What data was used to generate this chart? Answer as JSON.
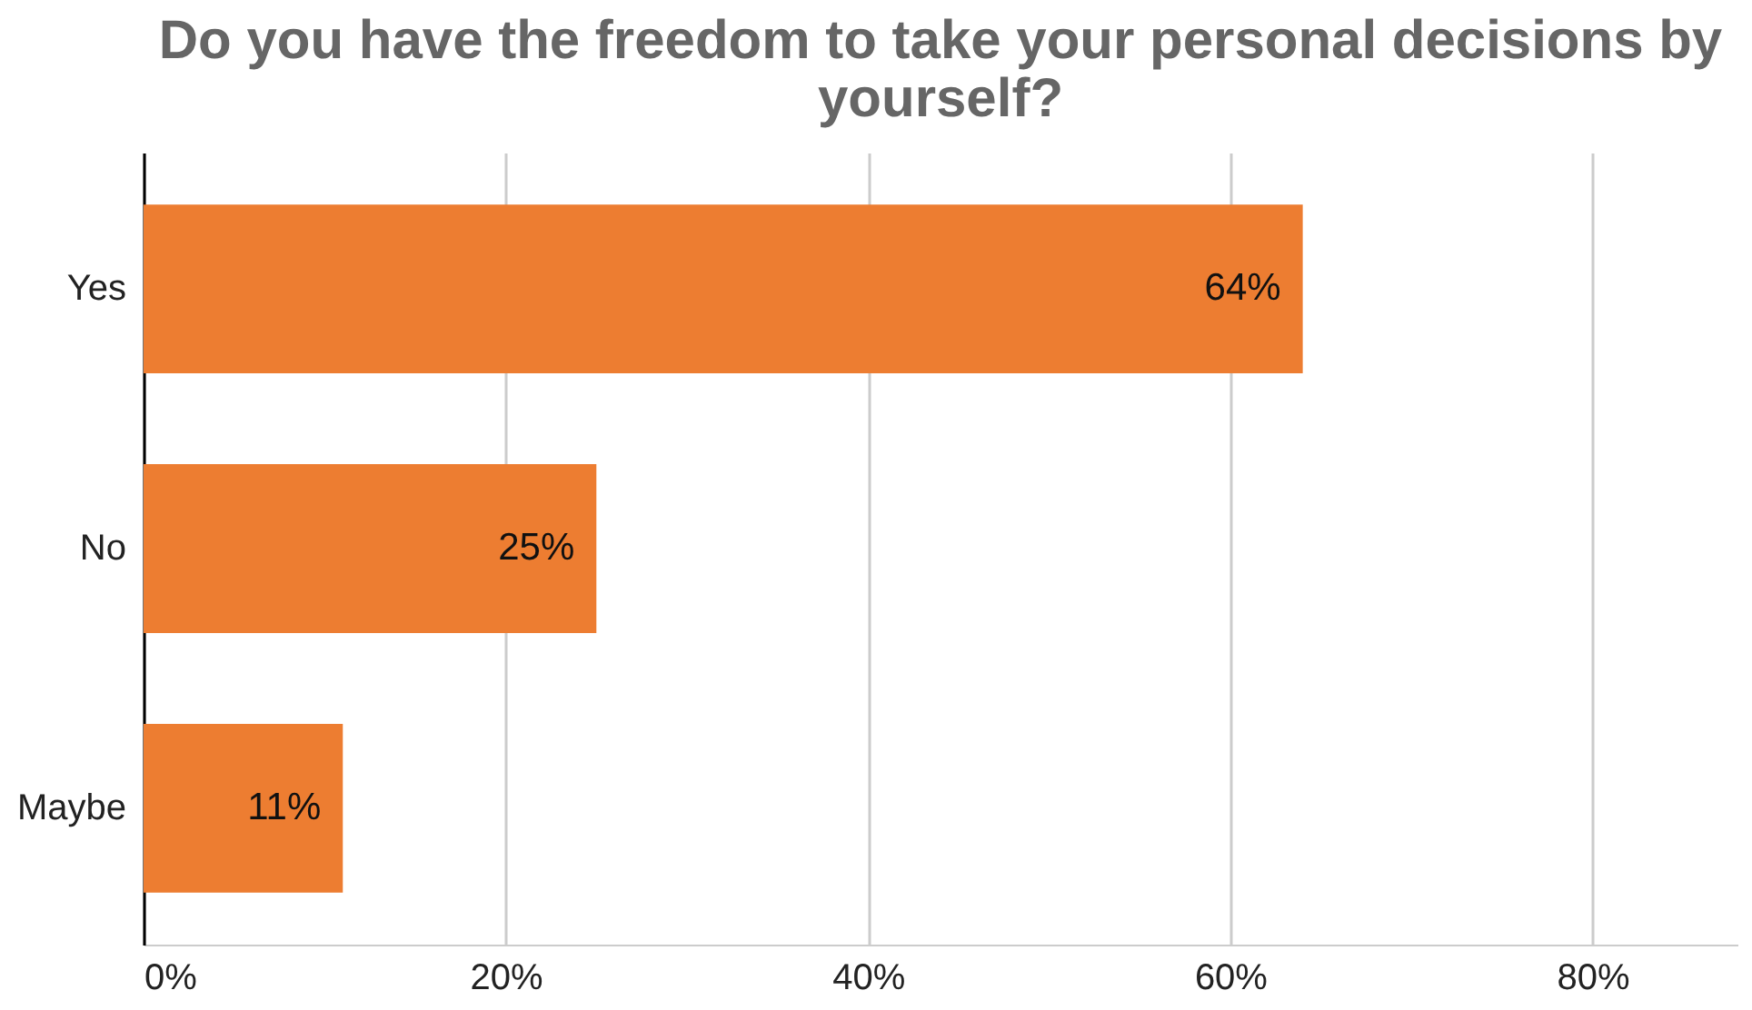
{
  "chart_data": {
    "type": "bar",
    "orientation": "horizontal",
    "title": "Do you have the freedom to take your personal decisions by yourself?",
    "categories": [
      "Yes",
      "No",
      "Maybe"
    ],
    "series": [
      {
        "color": "#ed7d31",
        "values": [
          64,
          25,
          11
        ],
        "value_labels": [
          "64%",
          "25%",
          "11%"
        ]
      }
    ],
    "xlim": [
      0,
      88
    ],
    "xticks": [
      {
        "value": 0,
        "label": "0%"
      },
      {
        "value": 20,
        "label": "20%"
      },
      {
        "value": 40,
        "label": "40%"
      },
      {
        "value": 60,
        "label": "60%"
      },
      {
        "value": 80,
        "label": "80%"
      }
    ],
    "grid": "x"
  }
}
